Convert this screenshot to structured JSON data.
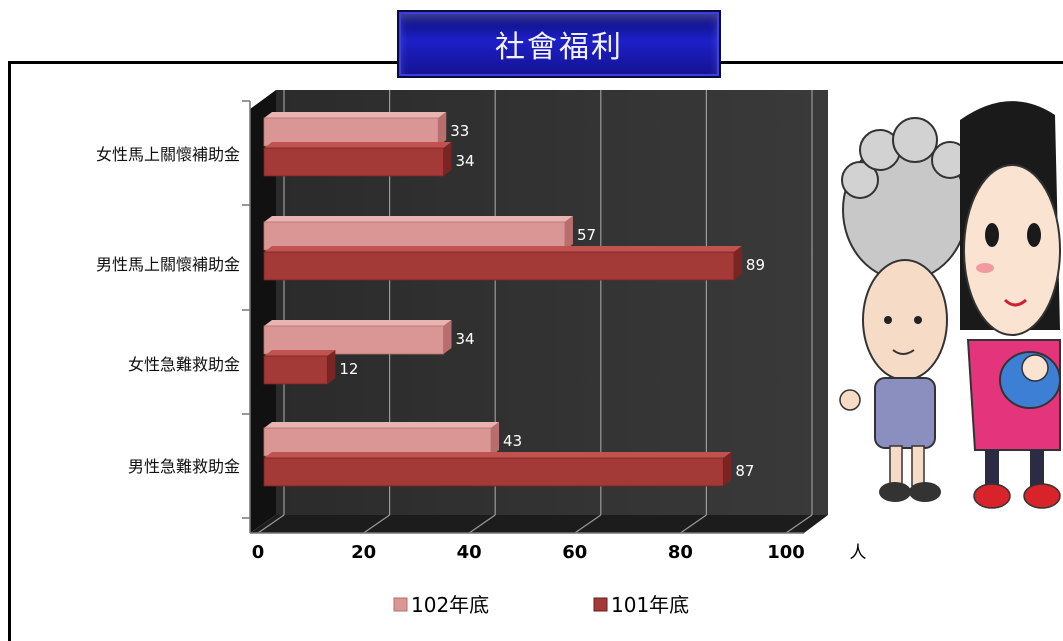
{
  "title": "社會福利",
  "chart_data": {
    "type": "bar",
    "orientation": "horizontal",
    "categories": [
      "女性馬上關懷補助金",
      "男性馬上關懷補助金",
      "女性急難救助金",
      "男性急難救助金"
    ],
    "series": [
      {
        "name": "102年底",
        "values": [
          33,
          57,
          34,
          43
        ],
        "color": "#d99694"
      },
      {
        "name": "101年底",
        "values": [
          34,
          89,
          12,
          87
        ],
        "color": "#a33a38"
      }
    ],
    "xlim": [
      0,
      100
    ],
    "xticks": [
      "0",
      "20",
      "40",
      "60",
      "80",
      "100"
    ],
    "unit": "人",
    "grid": true,
    "legend_position": "bottom",
    "background": "#333333"
  }
}
